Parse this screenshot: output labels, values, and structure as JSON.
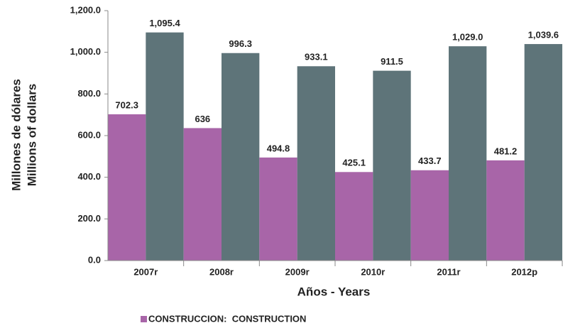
{
  "chart_data": {
    "type": "bar",
    "categories": [
      "2007r",
      "2008r",
      "2009r",
      "2010r",
      "2011r",
      "2012p"
    ],
    "series": [
      {
        "name": "CONSTRUCCION:  CONSTRUCTION",
        "color": "#a865a8",
        "values": [
          702.3,
          636.0,
          494.8,
          425.1,
          433.7,
          481.2
        ]
      },
      {
        "color": "#5e7479",
        "values": [
          1095.4,
          996.3,
          933.1,
          911.5,
          1029.0,
          1039.6
        ],
        "value_labels": [
          "1,095.4",
          "996.3",
          "933.1",
          "911.5",
          "1,029.0",
          "1,039.6"
        ]
      }
    ],
    "ylim": [
      0,
      1200
    ],
    "yticks": [
      {
        "value": 0,
        "label": "0.0"
      },
      {
        "value": 200,
        "label": "200.0"
      },
      {
        "value": 400,
        "label": "400.0"
      },
      {
        "value": 600,
        "label": "600.0"
      },
      {
        "value": 800,
        "label": "800.0"
      },
      {
        "value": 1000,
        "label": "1,000.0"
      },
      {
        "value": 1200,
        "label": "1,200.0"
      }
    ],
    "xlabel": "Años - Years",
    "ylabel": [
      "Millones de dólares",
      "Millions of dollars"
    ],
    "grid": false,
    "legend": "bottom-left"
  }
}
